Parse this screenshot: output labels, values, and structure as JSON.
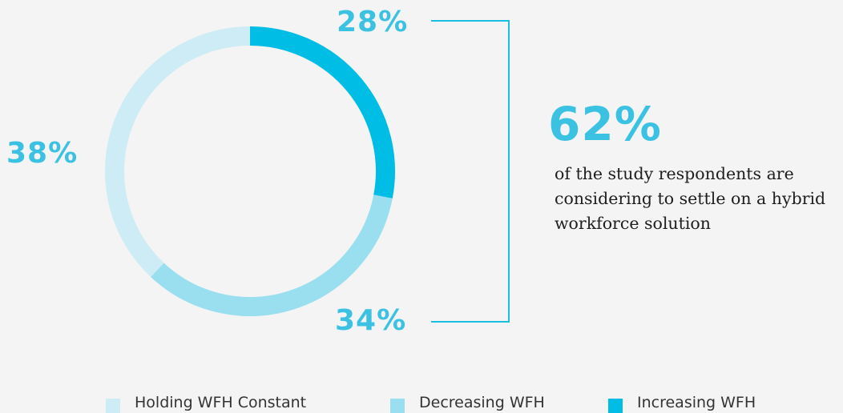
{
  "chart_data": {
    "type": "pie",
    "categories": [
      "Increasing WFH",
      "Decreasing WFH",
      "Holding WFH Constant"
    ],
    "values": [
      28,
      34,
      38
    ],
    "value_labels": [
      "28%",
      "34%",
      "38%"
    ],
    "colors": [
      "#00bde6",
      "#99dfef",
      "#ceecf5"
    ],
    "legend": [
      "Holding WFH Constant",
      "Decreasing WFH",
      "Increasing WFH"
    ],
    "legend_colors": [
      "#ceecf5",
      "#99dfef",
      "#00bde6"
    ],
    "legend_placement": "bottom"
  },
  "callout": {
    "value": "62%",
    "text": "of the study respondents are considering to settle on a hybrid workforce solution"
  },
  "colors": {
    "background": "#f4f4f4",
    "accent": "#3bc2e2",
    "bracket": "#1bbde3"
  }
}
